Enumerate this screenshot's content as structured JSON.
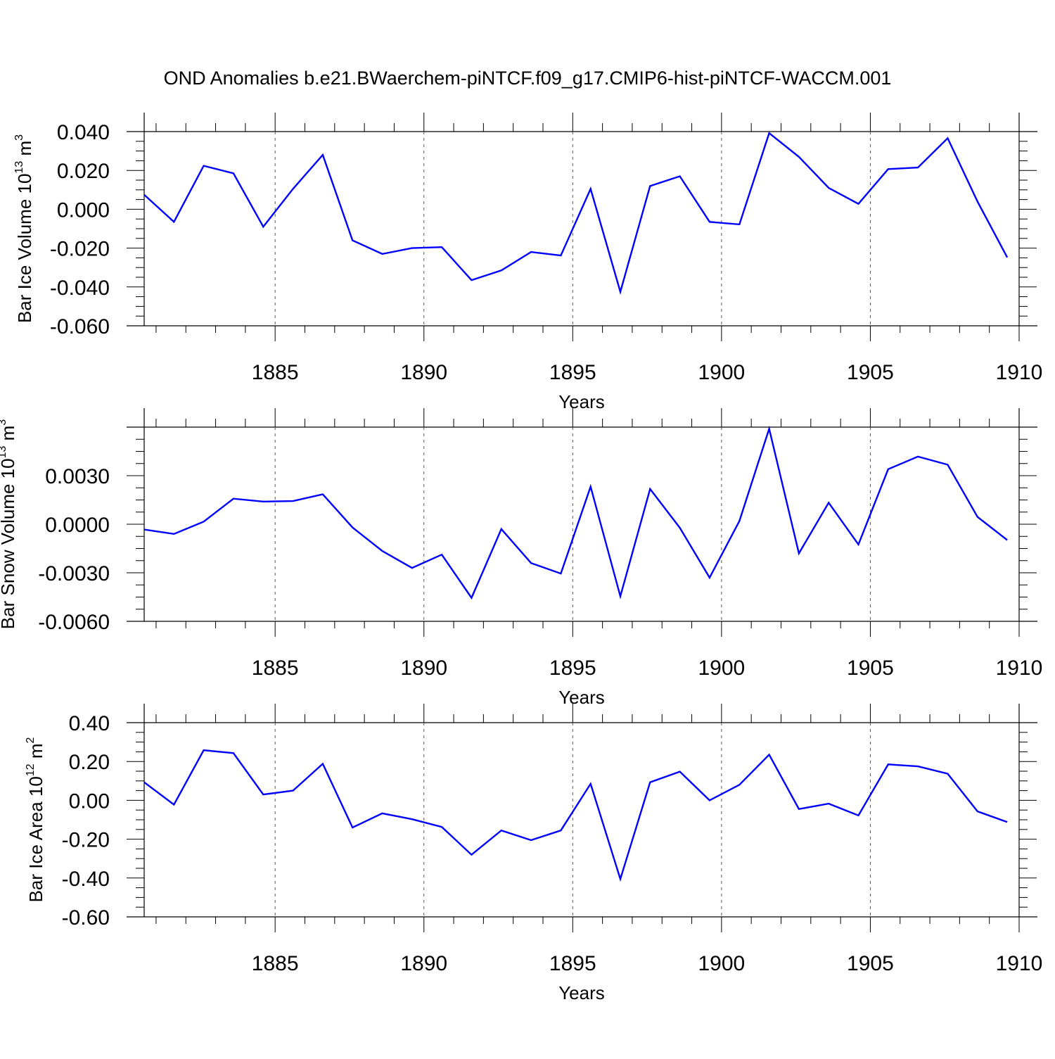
{
  "title": "OND Anomalies b.e21.BWaerchem-piNTCF.f09_g17.CMIP6-hist-piNTCF-WACCM.001",
  "colors": {
    "line": "#0000ff",
    "axis": "#000000",
    "grid": "#555555"
  },
  "chart_data": [
    {
      "type": "line",
      "ylabel": "Bar Ice Volume 10",
      "ylabel_exp": "13",
      "ylabel_unit": " m",
      "ylabel_unit_exp": "3",
      "xlabel": "Years",
      "xlim": [
        1880.6,
        1910
      ],
      "ylim": [
        -0.06,
        0.04
      ],
      "xticks": [
        1885,
        1890,
        1895,
        1900,
        1905,
        1910
      ],
      "xtick_labels": [
        "1885",
        "1890",
        "1895",
        "1900",
        "1905",
        "1910"
      ],
      "yticks": [
        0.04,
        0.02,
        0.0,
        -0.02,
        -0.04,
        -0.06
      ],
      "ytick_labels": [
        "0.040",
        "0.020",
        "0.000",
        "-0.020",
        "-0.040",
        "-0.060"
      ],
      "x": [
        1880.6,
        1881.6,
        1882.6,
        1883.6,
        1884.6,
        1885.6,
        1886.6,
        1887.6,
        1888.6,
        1889.6,
        1890.6,
        1891.6,
        1892.6,
        1893.6,
        1894.6,
        1895.6,
        1896.6,
        1897.6,
        1898.6,
        1899.6,
        1900.6,
        1901.6,
        1902.6,
        1903.6,
        1904.6,
        1905.6,
        1906.6,
        1907.6,
        1908.6,
        1909.6
      ],
      "series": [
        {
          "name": "Bar Ice Volume",
          "values": [
            0.0075,
            -0.0065,
            0.0224,
            0.0185,
            -0.009,
            0.0105,
            0.028,
            -0.016,
            -0.023,
            -0.02,
            -0.0195,
            -0.0365,
            -0.0315,
            -0.022,
            -0.0238,
            0.0105,
            -0.0425,
            0.012,
            0.017,
            -0.0065,
            -0.0078,
            0.0392,
            0.027,
            0.011,
            0.0028,
            0.0207,
            0.0215,
            0.0366,
            0.004,
            -0.0248
          ]
        }
      ]
    },
    {
      "type": "line",
      "ylabel": "Bar Snow Volume 10",
      "ylabel_exp": "13",
      "ylabel_unit": " m",
      "ylabel_unit_exp": "3",
      "xlabel": "Years",
      "xlim": [
        1880.6,
        1910
      ],
      "ylim": [
        -0.006,
        0.006
      ],
      "xticks": [
        1885,
        1890,
        1895,
        1900,
        1905,
        1910
      ],
      "xtick_labels": [
        "1885",
        "1890",
        "1895",
        "1900",
        "1905",
        "1910"
      ],
      "yticks": [
        0.003,
        0.0,
        -0.003,
        -0.006
      ],
      "ytick_labels": [
        "0.0030",
        "0.0000",
        "-0.0030",
        "-0.0060"
      ],
      "x": [
        1880.6,
        1881.6,
        1882.6,
        1883.6,
        1884.6,
        1885.6,
        1886.6,
        1887.6,
        1888.6,
        1889.6,
        1890.6,
        1891.6,
        1892.6,
        1893.6,
        1894.6,
        1895.6,
        1896.6,
        1897.6,
        1898.6,
        1899.6,
        1900.6,
        1901.6,
        1902.6,
        1903.6,
        1904.6,
        1905.6,
        1906.6,
        1907.6,
        1908.6,
        1909.6
      ],
      "series": [
        {
          "name": "Bar Snow Volume",
          "values": [
            -0.00033,
            -0.0006,
            0.00016,
            0.00158,
            0.0014,
            0.00143,
            0.00185,
            -0.0002,
            -0.00165,
            -0.0027,
            -0.00188,
            -0.00455,
            -0.0003,
            -0.0024,
            -0.00305,
            0.00232,
            -0.00445,
            0.00218,
            -0.00022,
            -0.0033,
            0.0002,
            0.0059,
            -0.0018,
            0.00133,
            -0.00125,
            0.0034,
            0.00418,
            0.00368,
            0.00045,
            -0.00098
          ]
        }
      ]
    },
    {
      "type": "line",
      "ylabel": "Bar Ice Area 10",
      "ylabel_exp": "12",
      "ylabel_unit": " m",
      "ylabel_unit_exp": "2",
      "xlabel": "Years",
      "xlim": [
        1880.6,
        1910
      ],
      "ylim": [
        -0.6,
        0.4
      ],
      "xticks": [
        1885,
        1890,
        1895,
        1900,
        1905,
        1910
      ],
      "xtick_labels": [
        "1885",
        "1890",
        "1895",
        "1900",
        "1905",
        "1910"
      ],
      "yticks": [
        0.4,
        0.2,
        0.0,
        -0.2,
        -0.4,
        -0.6
      ],
      "ytick_labels": [
        "0.40",
        "0.20",
        "0.00",
        "-0.20",
        "-0.40",
        "-0.60"
      ],
      "x": [
        1880.6,
        1881.6,
        1882.6,
        1883.6,
        1884.6,
        1885.6,
        1886.6,
        1887.6,
        1888.6,
        1889.6,
        1890.6,
        1891.6,
        1892.6,
        1893.6,
        1894.6,
        1895.6,
        1896.6,
        1897.6,
        1898.6,
        1899.6,
        1900.6,
        1901.6,
        1902.6,
        1903.6,
        1904.6,
        1905.6,
        1906.6,
        1907.6,
        1908.6,
        1909.6
      ],
      "series": [
        {
          "name": "Bar Ice Area",
          "values": [
            0.093,
            -0.022,
            0.258,
            0.243,
            0.03,
            0.05,
            0.188,
            -0.14,
            -0.067,
            -0.097,
            -0.137,
            -0.28,
            -0.155,
            -0.205,
            -0.155,
            0.085,
            -0.405,
            0.093,
            0.148,
            0.0,
            0.08,
            0.235,
            -0.045,
            -0.017,
            -0.078,
            0.185,
            0.175,
            0.137,
            -0.057,
            -0.112
          ]
        }
      ]
    }
  ]
}
